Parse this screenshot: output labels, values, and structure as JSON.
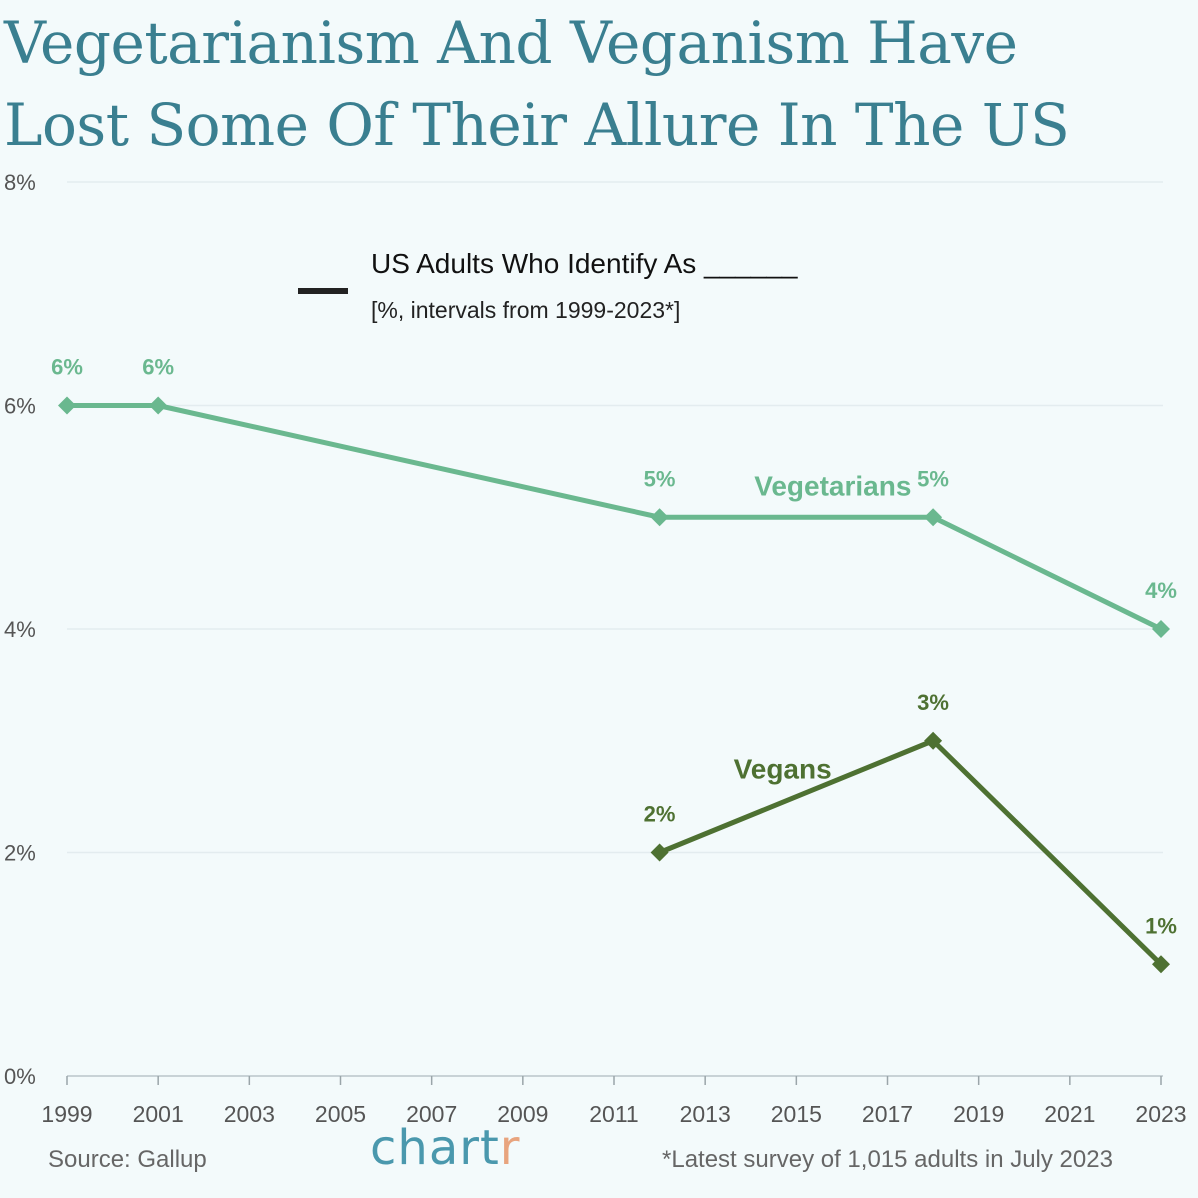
{
  "title": "Vegetarianism And Veganism Have Lost Some Of Their Allure In The US",
  "title_line1": "Vegetarianism And Veganism Have",
  "title_line2": "Lost Some Of Their Allure In The US",
  "legend": {
    "title": "US Adults Who Identify As ______",
    "subtitle": "[%, intervals from 1999-2023*]"
  },
  "footer": {
    "source": "Source: Gallup",
    "note": "*Latest survey of 1,015 adults in July 2023",
    "logo_main": "chart",
    "logo_accent": "r"
  },
  "colors": {
    "background": "#f3fafb",
    "title": "#3a7f90",
    "vegetarians": "#6ab88f",
    "vegans": "#4e7132",
    "grid": "#e3ecef",
    "logo": "#4a98ad",
    "logo_accent": "#e8a47e"
  },
  "chart_data": {
    "type": "line",
    "title": "US Adults Who Identify As ______",
    "xlabel": "",
    "ylabel": "",
    "xlim": [
      1999,
      2023
    ],
    "ylim": [
      0,
      8
    ],
    "x_ticks": [
      "1999",
      "2001",
      "2003",
      "2005",
      "2007",
      "2009",
      "2011",
      "2013",
      "2015",
      "2017",
      "2019",
      "2021",
      "2023"
    ],
    "y_ticks": [
      "0%",
      "2%",
      "4%",
      "6%",
      "8%"
    ],
    "y_tick_values": [
      0,
      2,
      4,
      6,
      8
    ],
    "grid": true,
    "series": [
      {
        "name": "Vegetarians",
        "color": "#6ab88f",
        "x": [
          1999,
          2001,
          2012,
          2018,
          2023
        ],
        "y": [
          6,
          6,
          5,
          5,
          4
        ],
        "labels": [
          "6%",
          "6%",
          "5%",
          "5%",
          "4%"
        ]
      },
      {
        "name": "Vegans",
        "color": "#4e7132",
        "x": [
          2012,
          2018,
          2023
        ],
        "y": [
          2,
          3,
          1
        ],
        "labels": [
          "2%",
          "3%",
          "1%"
        ]
      }
    ]
  }
}
